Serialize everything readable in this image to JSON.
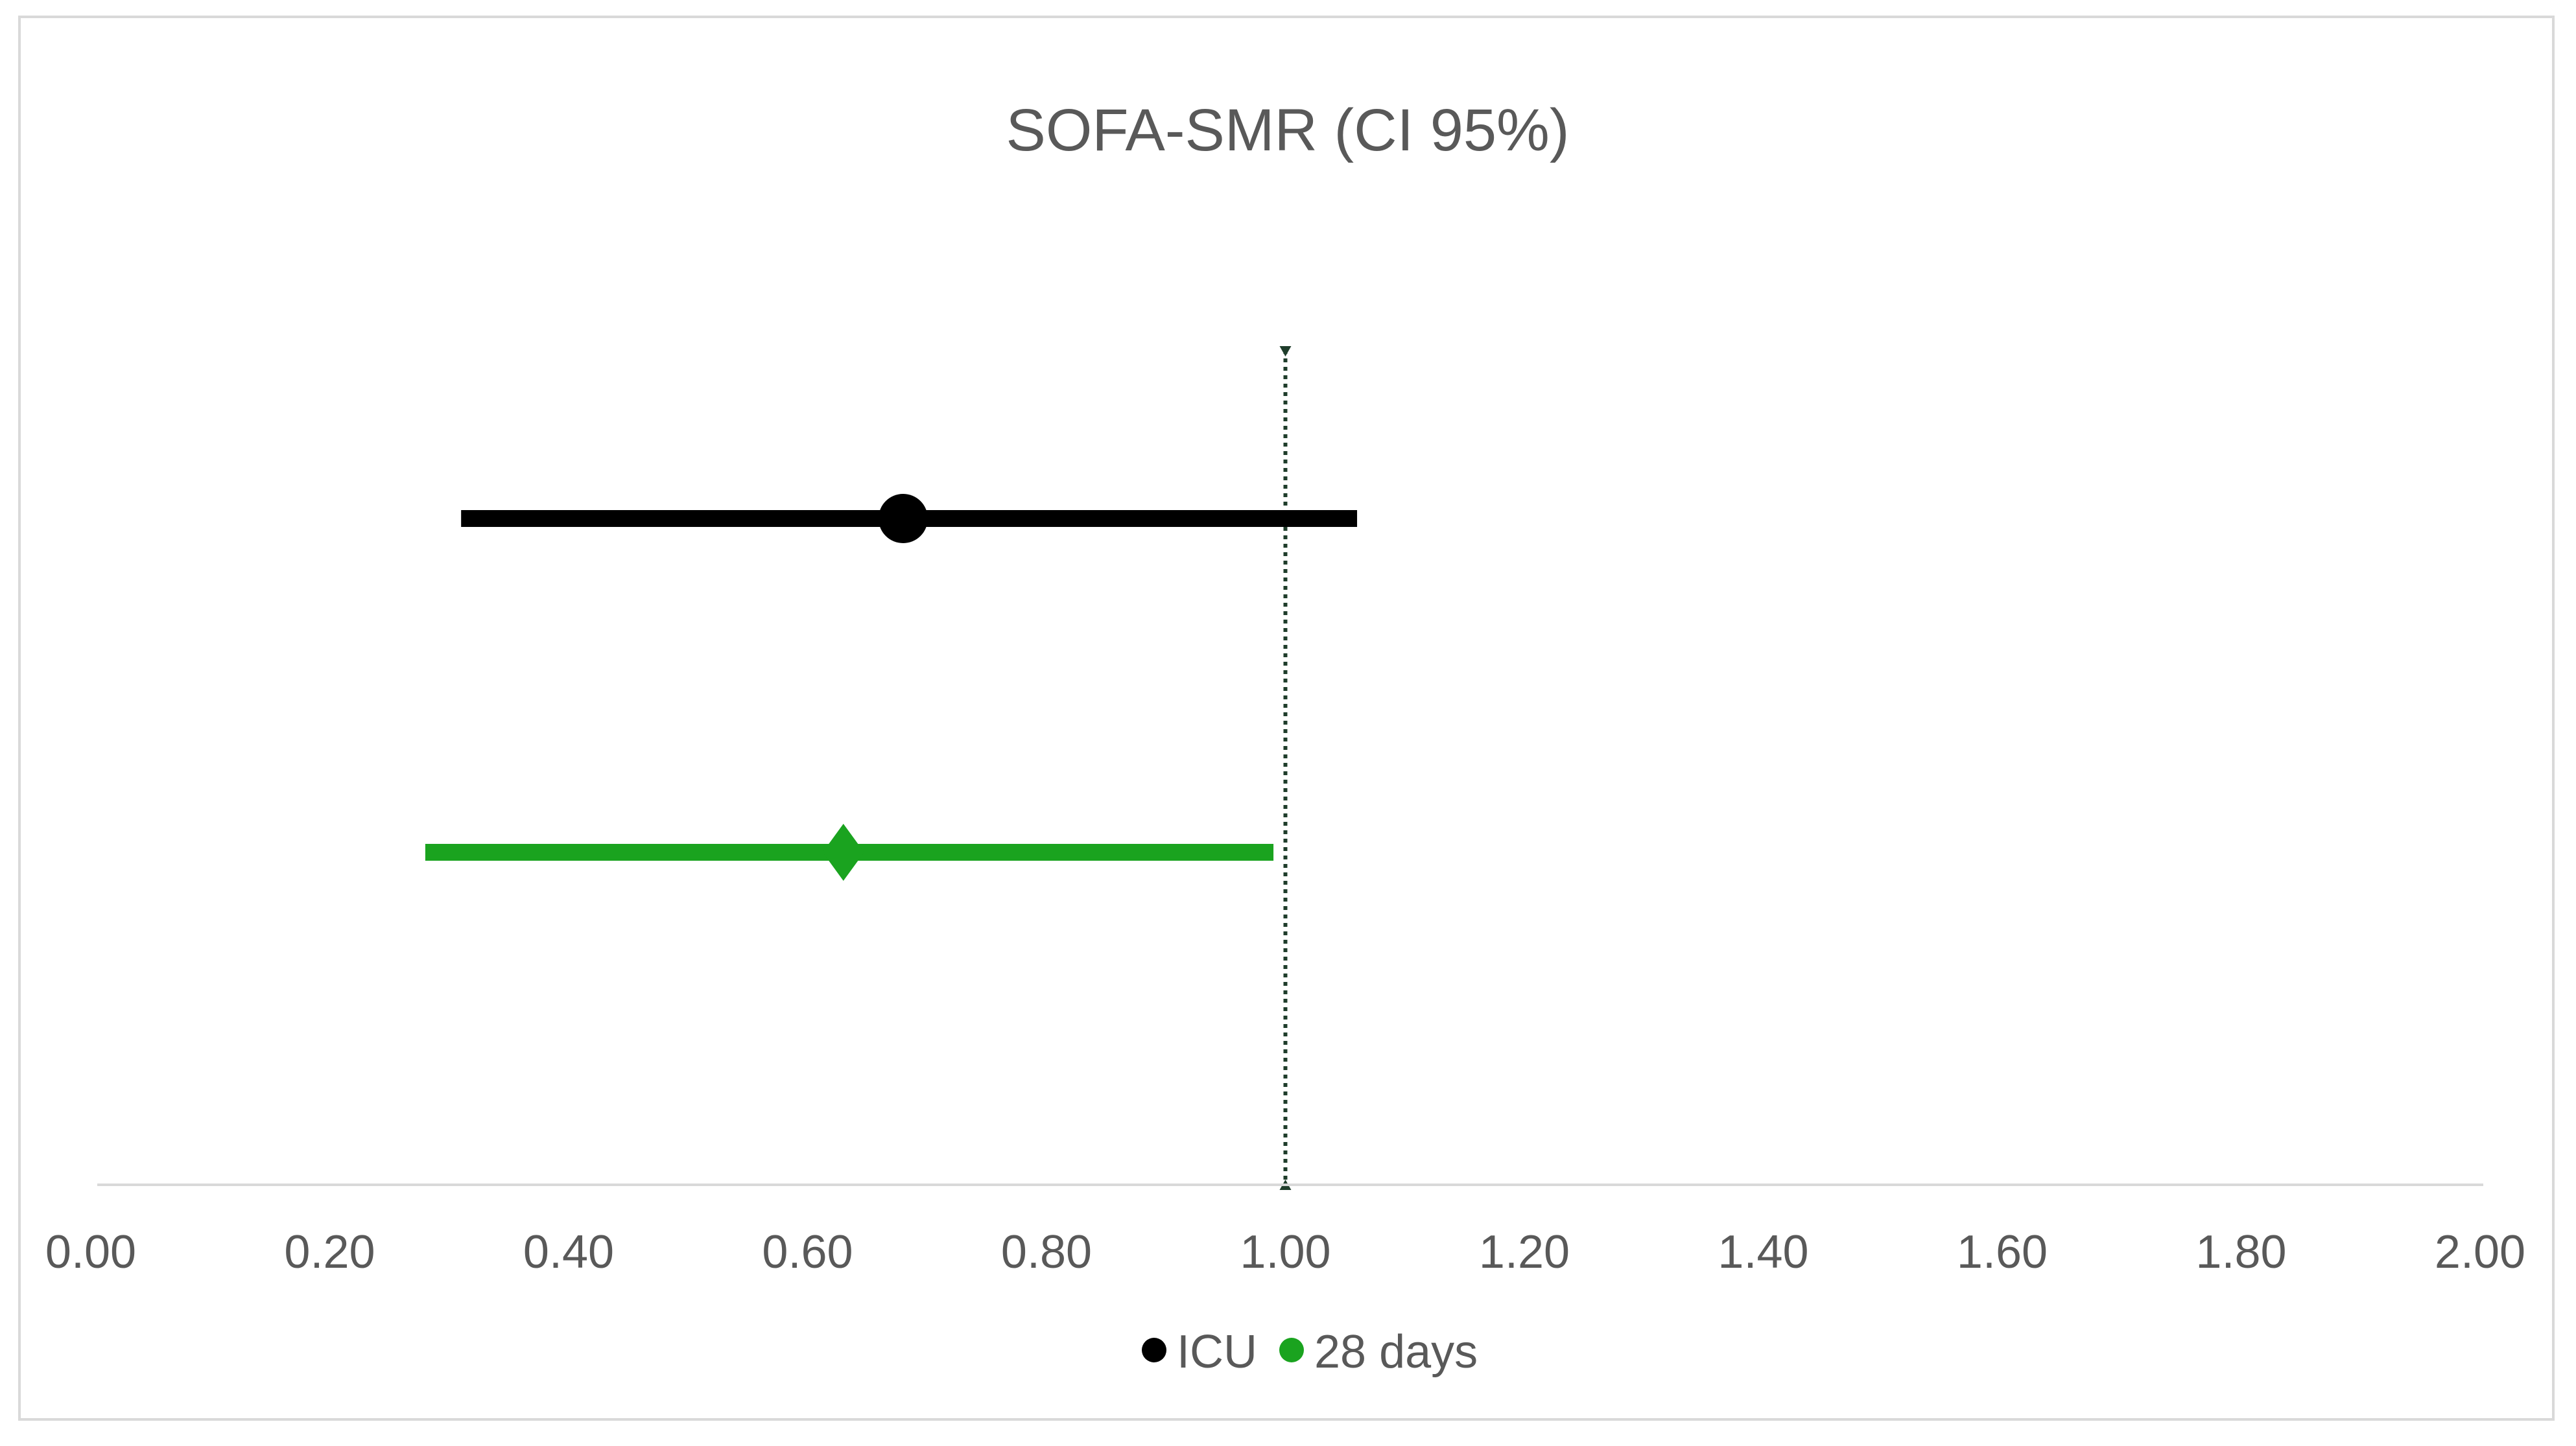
{
  "chart_data": {
    "type": "scatter",
    "subtype": "forest-plot",
    "title": "SOFA-SMR (CI 95%)",
    "xlabel": "",
    "ylabel": "",
    "xlim": [
      0,
      2
    ],
    "x_ticks": [
      "0.00",
      "0.20",
      "0.40",
      "0.60",
      "0.80",
      "1.00",
      "1.20",
      "1.40",
      "1.60",
      "1.80",
      "2.00"
    ],
    "x_tick_values": [
      0,
      0.2,
      0.4,
      0.6,
      0.8,
      1.0,
      1.2,
      1.4,
      1.6,
      1.8,
      2.0
    ],
    "reference_line": 1.0,
    "grid": false,
    "legend_position": "bottom",
    "series": [
      {
        "name": "ICU",
        "estimate": 0.68,
        "ci_lower": 0.31,
        "ci_upper": 1.06,
        "marker": "circle",
        "color": "#000000"
      },
      {
        "name": "28 days",
        "estimate": 0.63,
        "ci_lower": 0.28,
        "ci_upper": 0.99,
        "marker": "diamond",
        "color": "#1aa31f"
      }
    ]
  }
}
